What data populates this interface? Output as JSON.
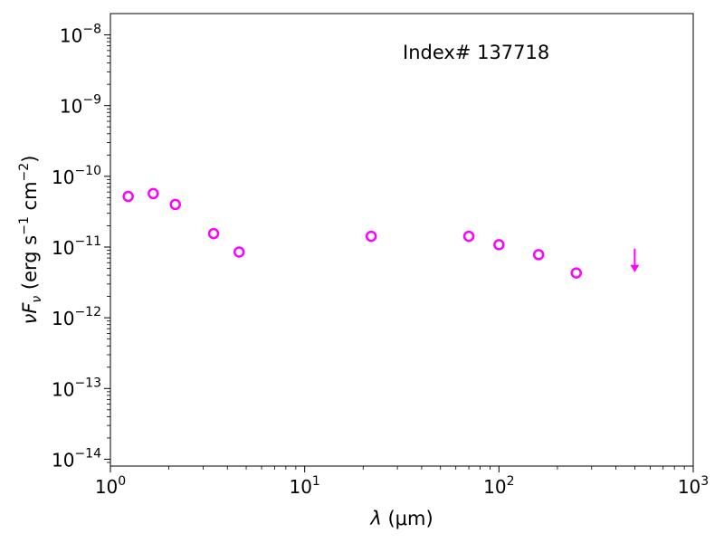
{
  "chart_data": {
    "type": "scatter",
    "annotation": "Index# 137718",
    "xlabel": {
      "symbol": "λ",
      "unit": " (μm)"
    },
    "ylabel": {
      "prefix": "νF",
      "sub": "ν",
      "unit_open": " (erg s",
      "exp1": "−1",
      "mid": " cm",
      "exp2": "−2",
      "close": ")"
    },
    "x_scale": "log",
    "y_scale": "log",
    "xlim": [
      1,
      1000
    ],
    "ylim": [
      8e-15,
      2e-08
    ],
    "x_ticks": [
      {
        "value": 1,
        "mantissa": "10",
        "exp": "0"
      },
      {
        "value": 10,
        "mantissa": "10",
        "exp": "1"
      },
      {
        "value": 100,
        "mantissa": "10",
        "exp": "2"
      },
      {
        "value": 1000,
        "mantissa": "10",
        "exp": "3"
      }
    ],
    "y_ticks": [
      {
        "value": 1e-14,
        "mantissa": "10",
        "exp": "−14"
      },
      {
        "value": 1e-13,
        "mantissa": "10",
        "exp": "−13"
      },
      {
        "value": 1e-12,
        "mantissa": "10",
        "exp": "−12"
      },
      {
        "value": 1e-11,
        "mantissa": "10",
        "exp": "−11"
      },
      {
        "value": 1e-10,
        "mantissa": "10",
        "exp": "−10"
      },
      {
        "value": 1e-09,
        "mantissa": "10",
        "exp": "−9"
      },
      {
        "value": 1e-08,
        "mantissa": "10",
        "exp": "−8"
      }
    ],
    "grid": false,
    "marker_color": "#ff00ff",
    "points": [
      {
        "x": 1.235,
        "y": 5.2e-11
      },
      {
        "x": 1.662,
        "y": 5.7e-11
      },
      {
        "x": 2.159,
        "y": 4e-11
      },
      {
        "x": 3.4,
        "y": 1.55e-11
      },
      {
        "x": 4.6,
        "y": 8.5e-12
      },
      {
        "x": 22,
        "y": 1.42e-11
      },
      {
        "x": 70,
        "y": 1.42e-11
      },
      {
        "x": 100,
        "y": 1.08e-11
      },
      {
        "x": 160,
        "y": 7.8e-12
      },
      {
        "x": 250,
        "y": 4.3e-12
      }
    ],
    "upper_limits": [
      {
        "x": 500,
        "y": 7.5e-12
      }
    ]
  }
}
